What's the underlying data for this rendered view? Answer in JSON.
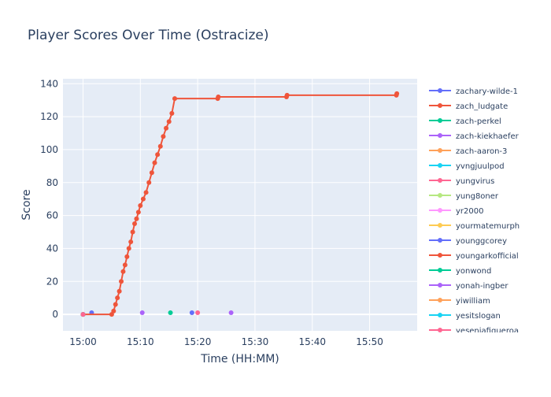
{
  "chart_data": {
    "type": "line",
    "title": "Player Scores Over Time (Ostracize)",
    "xlabel": "Time (HH:MM)",
    "ylabel": "Score",
    "x_ticks": [
      "15:00",
      "15:10",
      "15:20",
      "15:30",
      "15:40",
      "15:50"
    ],
    "y_ticks": [
      0,
      20,
      40,
      60,
      80,
      100,
      120,
      140
    ],
    "xlim_minutes_after_15_00": [
      -3.5,
      58.3
    ],
    "ylim": [
      -10,
      143
    ],
    "grid": true,
    "legend_position": "right",
    "background_color": "#e5ecf6",
    "series": [
      {
        "name": "zachary-wilde-1",
        "color": "#636efa",
        "points": [
          [
            "15:01:30",
            1
          ]
        ]
      },
      {
        "name": "zach_ludgate",
        "color": "#ef553b",
        "points": [
          [
            "15:00:00",
            0
          ],
          [
            "15:05:00",
            0
          ],
          [
            "15:05:20",
            2
          ],
          [
            "15:05:40",
            6
          ],
          [
            "15:06:00",
            10
          ],
          [
            "15:06:20",
            14
          ],
          [
            "15:06:40",
            20
          ],
          [
            "15:07:00",
            26
          ],
          [
            "15:07:20",
            30
          ],
          [
            "15:07:40",
            35
          ],
          [
            "15:08:00",
            40
          ],
          [
            "15:08:20",
            44
          ],
          [
            "15:08:40",
            50
          ],
          [
            "15:09:00",
            55
          ],
          [
            "15:09:20",
            58
          ],
          [
            "15:09:40",
            62
          ],
          [
            "15:10:00",
            66
          ],
          [
            "15:10:30",
            70
          ],
          [
            "15:11:00",
            74
          ],
          [
            "15:11:30",
            80
          ],
          [
            "15:12:00",
            86
          ],
          [
            "15:12:30",
            92
          ],
          [
            "15:13:00",
            97
          ],
          [
            "15:13:30",
            102
          ],
          [
            "15:14:00",
            108
          ],
          [
            "15:14:30",
            113
          ],
          [
            "15:15:00",
            117
          ],
          [
            "15:15:30",
            122
          ],
          [
            "15:16:00",
            131
          ],
          [
            "15:23:30",
            131
          ],
          [
            "15:23:36",
            132
          ],
          [
            "15:35:30",
            132
          ],
          [
            "15:35:36",
            133
          ],
          [
            "15:54:40",
            133
          ],
          [
            "15:54:45",
            134
          ]
        ]
      },
      {
        "name": "zach-perkel",
        "color": "#00cc96",
        "points": [
          [
            "15:15:15",
            1
          ]
        ]
      },
      {
        "name": "zach-kiekhaefer",
        "color": "#ab63fa",
        "points": [
          [
            "15:25:50",
            1
          ]
        ]
      },
      {
        "name": "zach-aaron-3",
        "color": "#ffa15a",
        "points": [
          [
            "15:00:00",
            0
          ]
        ]
      },
      {
        "name": "yvngjuulpod",
        "color": "#19d3f3",
        "points": [
          [
            "15:00:00",
            0
          ]
        ]
      },
      {
        "name": "yungvirus",
        "color": "#ff6692",
        "points": [
          [
            "15:20:00",
            1
          ]
        ]
      },
      {
        "name": "yung8oner",
        "color": "#b6e880",
        "points": [
          [
            "15:00:00",
            0
          ]
        ]
      },
      {
        "name": "yr2000",
        "color": "#ff97ff",
        "points": [
          [
            "15:00:00",
            0
          ]
        ]
      },
      {
        "name": "yourmatemurph",
        "color": "#fecb52",
        "points": [
          [
            "15:00:00",
            0
          ]
        ]
      },
      {
        "name": "younggcorey",
        "color": "#636efa",
        "points": [
          [
            "15:19:00",
            1
          ]
        ]
      },
      {
        "name": "youngarkofficial",
        "color": "#ef553b",
        "points": [
          [
            "15:00:00",
            0
          ]
        ]
      },
      {
        "name": "yonwond",
        "color": "#00cc96",
        "points": [
          [
            "15:00:00",
            0
          ]
        ]
      },
      {
        "name": "yonah-ingber",
        "color": "#ab63fa",
        "points": [
          [
            "15:10:20",
            1
          ]
        ]
      },
      {
        "name": "yiwilliam",
        "color": "#ffa15a",
        "points": [
          [
            "15:00:00",
            0
          ]
        ]
      },
      {
        "name": "yesitslogan",
        "color": "#19d3f3",
        "points": [
          [
            "15:00:00",
            0
          ]
        ]
      },
      {
        "name": "yeseniafigueroa",
        "color": "#ff6692",
        "points": [
          [
            "15:00:00",
            0
          ]
        ]
      }
    ]
  }
}
